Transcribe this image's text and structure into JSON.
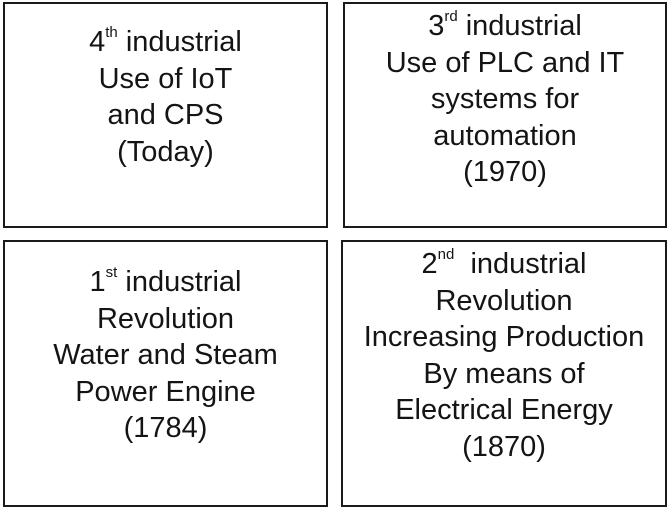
{
  "panels": {
    "fourth": {
      "number": "4",
      "suffix": "th",
      "heading": " industrial",
      "lines": [
        "Use of IoT",
        "and CPS",
        "(Today)"
      ]
    },
    "third": {
      "number": "3",
      "suffix": "rd",
      "heading": " industrial",
      "lines": [
        "Use of PLC and IT",
        "systems for",
        "automation",
        "(1970)"
      ]
    },
    "first": {
      "number": "1",
      "suffix": "st",
      "heading": " industrial",
      "lines": [
        "Revolution",
        "Water and Steam",
        "Power Engine",
        "(1784)"
      ]
    },
    "second": {
      "number": "2",
      "suffix": "nd",
      "heading": "  industrial",
      "lines": [
        "Revolution",
        "Increasing Production",
        "By means of",
        "Electrical Energy",
        "(1870)"
      ]
    }
  }
}
